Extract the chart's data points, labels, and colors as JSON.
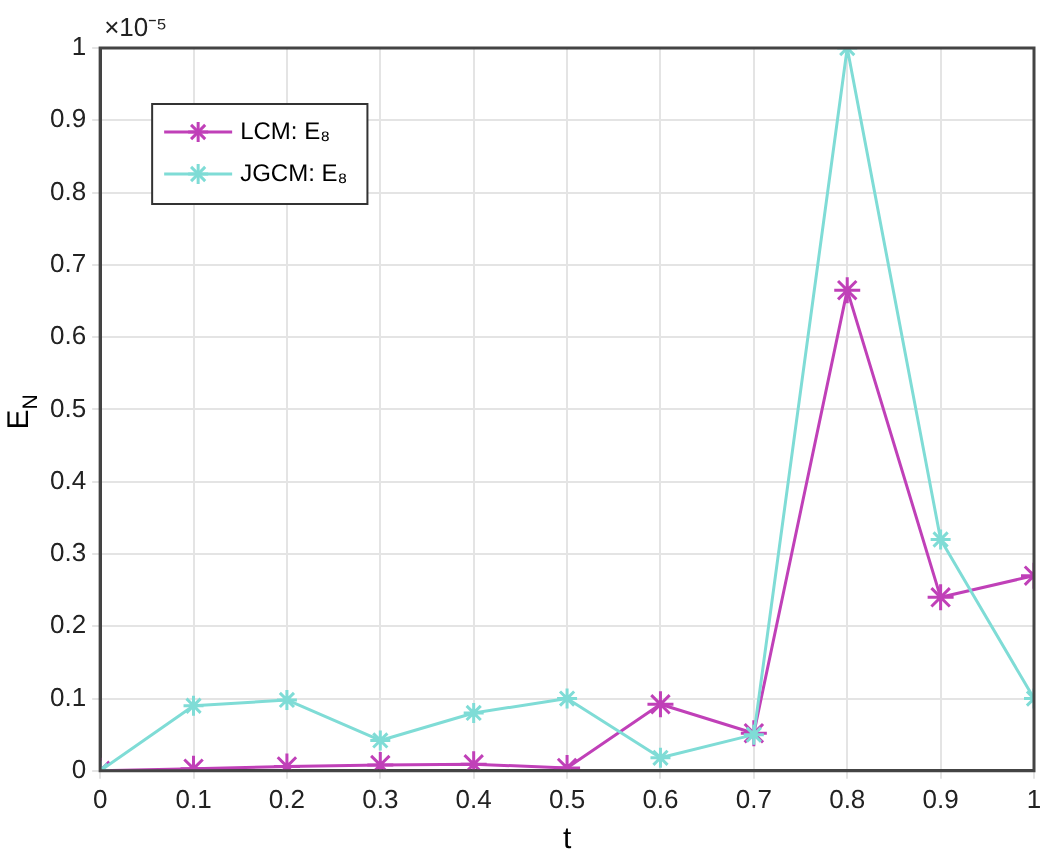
{
  "chart_data": {
    "type": "line",
    "xlabel": "t",
    "ylabel": "E$_{N}$",
    "x": [
      0,
      0.1,
      0.2,
      0.3,
      0.4,
      0.5,
      0.6,
      0.7,
      0.8,
      0.9,
      1
    ],
    "series": [
      {
        "name": "LCM: E₈",
        "color": "#c040b8",
        "values": [
          0,
          0.003,
          0.006,
          0.008,
          0.009,
          0.004,
          0.092,
          0.052,
          0.665,
          0.24,
          0.27
        ]
      },
      {
        "name": "JGCM: E₈",
        "color": "#7fdcd6",
        "values": [
          0,
          0.09,
          0.098,
          0.042,
          0.08,
          0.1,
          0.018,
          0.05,
          1.0,
          0.32,
          0.1
        ]
      }
    ],
    "xlim": [
      0,
      1
    ],
    "xticks": [
      0,
      0.1,
      0.2,
      0.3,
      0.4,
      0.5,
      0.6,
      0.7,
      0.8,
      0.9,
      1
    ],
    "ylim": [
      0,
      1
    ],
    "yticks": [
      0,
      0.1,
      0.2,
      0.3,
      0.4,
      0.5,
      0.6,
      0.7,
      0.8,
      0.9,
      1
    ],
    "annotations": [
      "×10⁻⁵"
    ],
    "grid": true,
    "legend": "top left",
    "marker": "cross",
    "line_style": "solid"
  }
}
